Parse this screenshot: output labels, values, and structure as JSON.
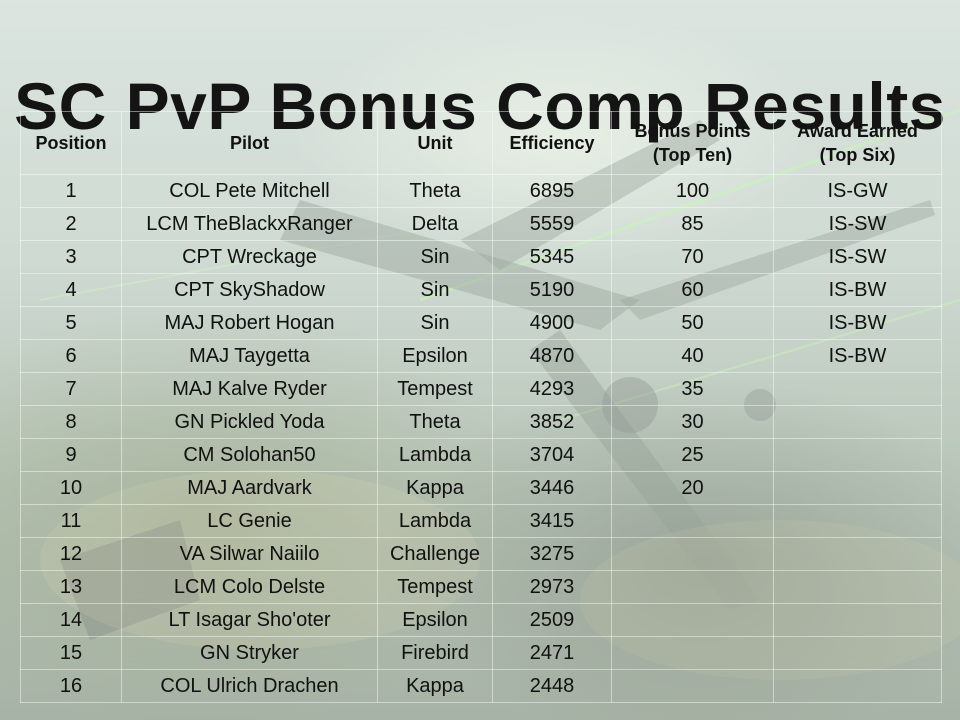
{
  "title": "SC PvP Bonus Comp Results",
  "headers": {
    "position": "Position",
    "pilot": "Pilot",
    "unit": "Unit",
    "efficiency": "Efficiency",
    "bonus_line1": "Bonus Points",
    "bonus_line2": "(Top Ten)",
    "award_line1": "Award Earned",
    "award_line2": "(Top Six)"
  },
  "rows": [
    {
      "position": "1",
      "pilot": "COL Pete Mitchell",
      "unit": "Theta",
      "efficiency": "6895",
      "bonus": "100",
      "award": "IS-GW"
    },
    {
      "position": "2",
      "pilot": "LCM TheBlackxRanger",
      "unit": "Delta",
      "efficiency": "5559",
      "bonus": "85",
      "award": "IS-SW"
    },
    {
      "position": "3",
      "pilot": "CPT Wreckage",
      "unit": "Sin",
      "efficiency": "5345",
      "bonus": "70",
      "award": "IS-SW"
    },
    {
      "position": "4",
      "pilot": "CPT SkyShadow",
      "unit": "Sin",
      "efficiency": "5190",
      "bonus": "60",
      "award": "IS-BW"
    },
    {
      "position": "5",
      "pilot": "MAJ Robert Hogan",
      "unit": "Sin",
      "efficiency": "4900",
      "bonus": "50",
      "award": "IS-BW"
    },
    {
      "position": "6",
      "pilot": "MAJ Taygetta",
      "unit": "Epsilon",
      "efficiency": "4870",
      "bonus": "40",
      "award": "IS-BW"
    },
    {
      "position": "7",
      "pilot": "MAJ Kalve Ryder",
      "unit": "Tempest",
      "efficiency": "4293",
      "bonus": "35",
      "award": ""
    },
    {
      "position": "8",
      "pilot": "GN Pickled Yoda",
      "unit": "Theta",
      "efficiency": "3852",
      "bonus": "30",
      "award": ""
    },
    {
      "position": "9",
      "pilot": "CM Solohan50",
      "unit": "Lambda",
      "efficiency": "3704",
      "bonus": "25",
      "award": ""
    },
    {
      "position": "10",
      "pilot": "MAJ Aardvark",
      "unit": "Kappa",
      "efficiency": "3446",
      "bonus": "20",
      "award": ""
    },
    {
      "position": "11",
      "pilot": "LC Genie",
      "unit": "Lambda",
      "efficiency": "3415",
      "bonus": "",
      "award": ""
    },
    {
      "position": "12",
      "pilot": "VA Silwar Naiilo",
      "unit": "Challenge",
      "efficiency": "3275",
      "bonus": "",
      "award": ""
    },
    {
      "position": "13",
      "pilot": "LCM Colo Delste",
      "unit": "Tempest",
      "efficiency": "2973",
      "bonus": "",
      "award": ""
    },
    {
      "position": "14",
      "pilot": "LT Isagar Sho'oter",
      "unit": "Epsilon",
      "efficiency": "2509",
      "bonus": "",
      "award": ""
    },
    {
      "position": "15",
      "pilot": "GN Stryker",
      "unit": "Firebird",
      "efficiency": "2471",
      "bonus": "",
      "award": ""
    },
    {
      "position": "16",
      "pilot": "COL Ulrich Drachen",
      "unit": "Kappa",
      "efficiency": "2448",
      "bonus": "",
      "award": ""
    }
  ]
}
